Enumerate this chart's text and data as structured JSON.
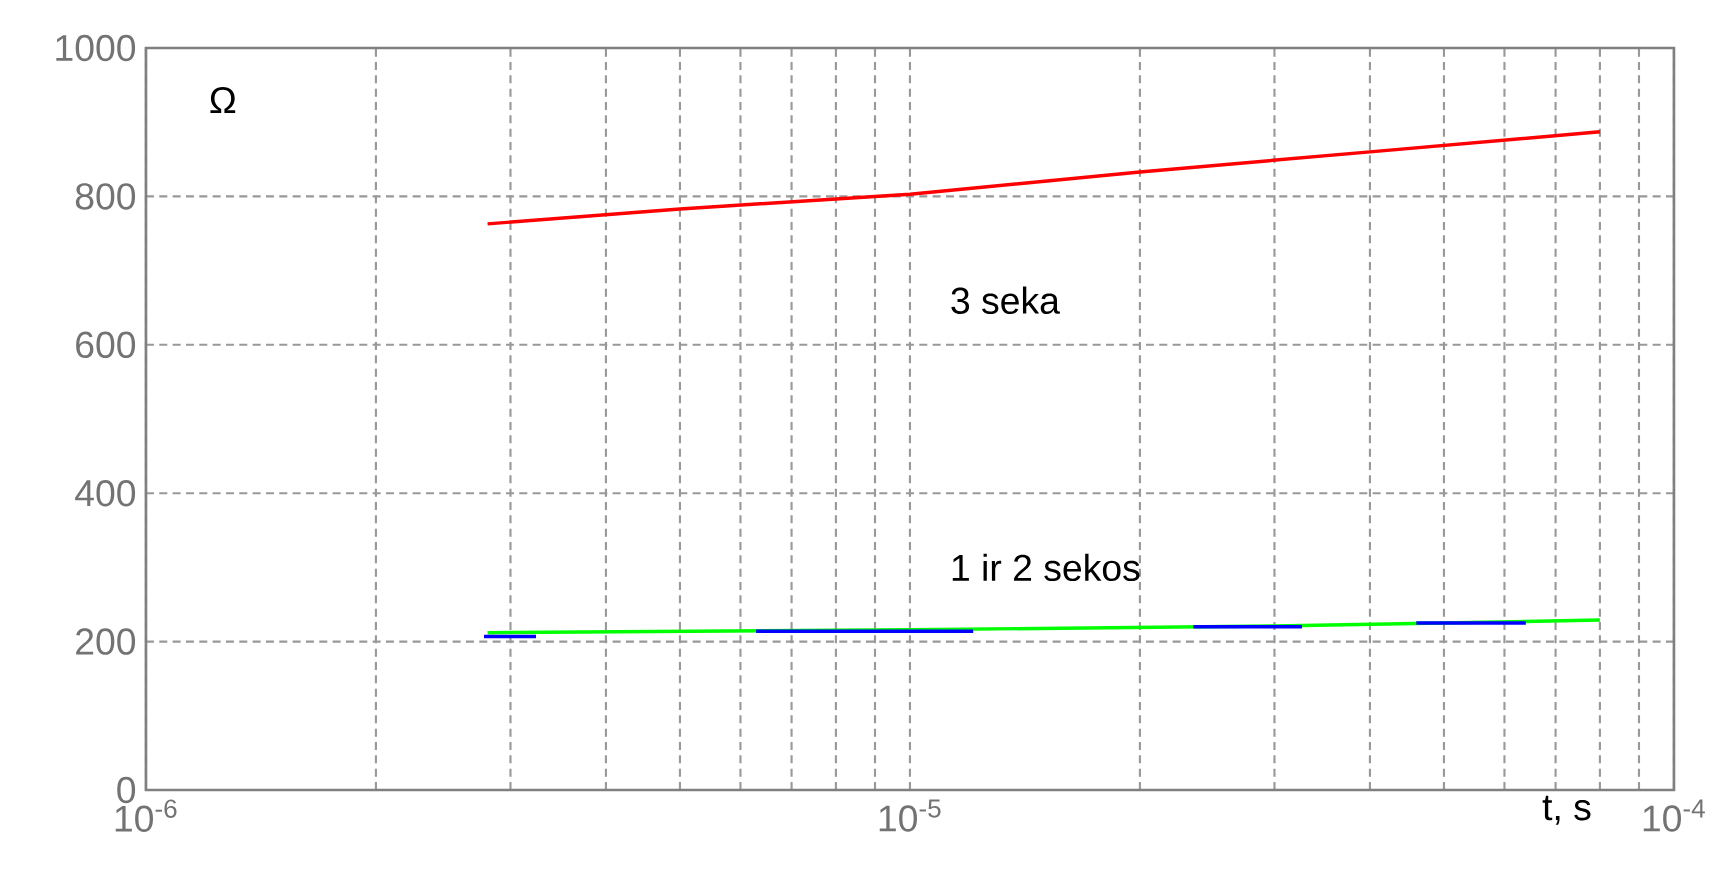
{
  "chart_data": {
    "type": "line",
    "xlabel": "t, s",
    "ylabel": "Ω",
    "log": "x",
    "xlim": [
      1e-06,
      0.0001
    ],
    "ylim": [
      0,
      1000
    ],
    "xticks": [
      {
        "value": 1e-06,
        "label": "10$^{-6}$"
      },
      {
        "value": 1e-05,
        "label": "10$^{-5}$"
      },
      {
        "value": 0.0001,
        "label": "10$^{-4}$"
      }
    ],
    "yticks": [
      0,
      200,
      400,
      600,
      800,
      1000
    ],
    "grid": true,
    "marker": "none",
    "series": [
      {
        "color": "#ff0000",
        "line_style": "solid",
        "x": [
          2.8e-06,
          5e-06,
          1e-05,
          2e-05,
          4e-05,
          8e-05
        ],
        "values": [
          763,
          783,
          803,
          833,
          860,
          887
        ]
      },
      {
        "color": "#00ff00",
        "line_style": "solid",
        "x": [
          2.8e-06,
          1e-05,
          3e-05,
          8e-05
        ],
        "values": [
          212,
          216,
          221,
          229
        ]
      },
      {
        "color": "#0000ff",
        "line_style": "solid",
        "x": [
          2.77e-06,
          3.24e-06,
          4.5e-06,
          6.29e-06,
          1.21e-05,
          1.7e-05,
          2.35e-05,
          3.26e-05,
          3.9e-05,
          4.6e-05,
          6.4e-05
        ],
        "values": [
          207,
          207,
          null,
          214,
          214,
          null,
          220,
          220,
          null,
          225,
          225
        ]
      }
    ],
    "annotations": [
      "3 seka",
      "1 ir 2 sekos"
    ]
  }
}
